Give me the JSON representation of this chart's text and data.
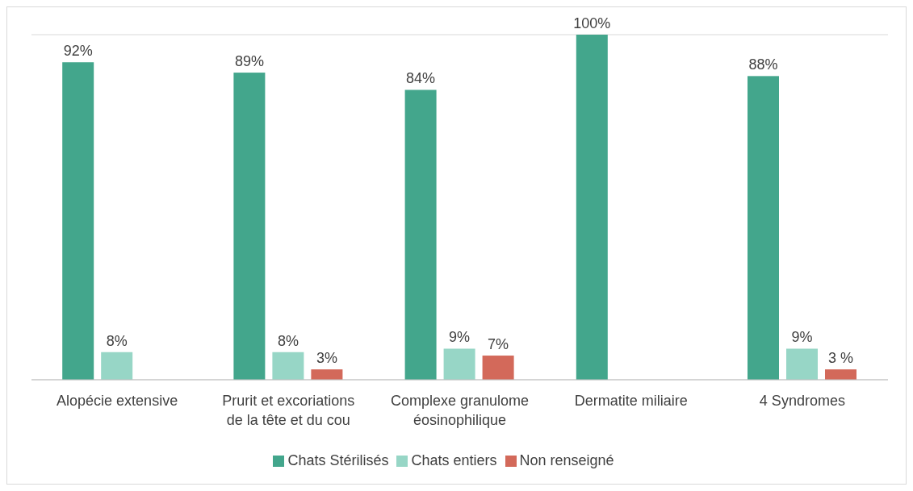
{
  "chart_data": {
    "type": "bar",
    "categories": [
      "Alopécie extensive",
      "Prurit et excoriations de la tête et du cou",
      "Complexe granulome éosinophilique",
      "Dermatite miliaire",
      "4 Syndromes"
    ],
    "series": [
      {
        "name": "Chats Stérilisés",
        "color": "#43a68c",
        "values": [
          92,
          89,
          84,
          100,
          88
        ],
        "value_labels": [
          "92%",
          "89%",
          "84%",
          "100%",
          "88%"
        ]
      },
      {
        "name": "Chats entiers",
        "color": "#97d6c6",
        "values": [
          8,
          8,
          9,
          null,
          9
        ],
        "value_labels": [
          "8%",
          "8%",
          "9%",
          null,
          "9%"
        ]
      },
      {
        "name": "Non renseigné",
        "color": "#d3695a",
        "values": [
          null,
          3,
          7,
          null,
          3
        ],
        "value_labels": [
          null,
          "3%",
          "7%",
          null,
          "3 %"
        ]
      }
    ],
    "ylim": [
      0,
      100
    ],
    "grid": "y",
    "legend": "bottom",
    "tick_labels": "x"
  }
}
